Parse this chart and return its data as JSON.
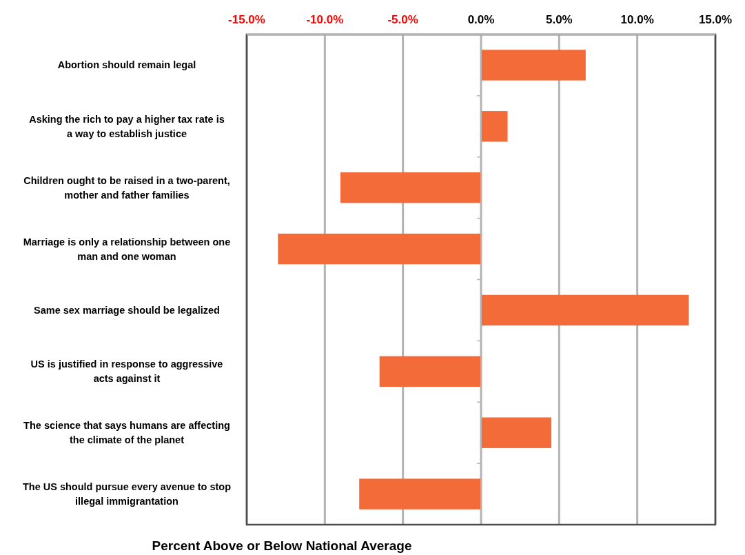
{
  "chart_data": {
    "type": "bar",
    "orientation": "horizontal",
    "xlabel": "Percent Above or Below National Average",
    "categories": [
      "Abortion should remain legal",
      "Asking the rich to pay a higher tax rate is a way to establish justice",
      "Children ought to be raised in a two-parent, mother and father families",
      "Marriage is only a relationship between one man and one woman",
      "Same sex marriage should be legalized",
      "US is justified in response to aggressive acts against it",
      "The science that says humans are affecting the climate of the planet",
      "The US should pursue every avenue to stop illegal immigrantation"
    ],
    "values": [
      6.7,
      1.7,
      -9.0,
      -13.0,
      13.3,
      -6.5,
      4.5,
      -7.8
    ],
    "color": "#f26b38",
    "xlim": [
      -15,
      15
    ],
    "xticks": [
      {
        "value": -15,
        "label": "-15.0%"
      },
      {
        "value": -10,
        "label": "-10.0%"
      },
      {
        "value": -5,
        "label": "-5.0%"
      },
      {
        "value": 0,
        "label": "0.0%"
      },
      {
        "value": 5,
        "label": "5.0%"
      },
      {
        "value": 10,
        "label": "10.0%"
      },
      {
        "value": 15,
        "label": "15.0%"
      }
    ],
    "grid": "x"
  }
}
